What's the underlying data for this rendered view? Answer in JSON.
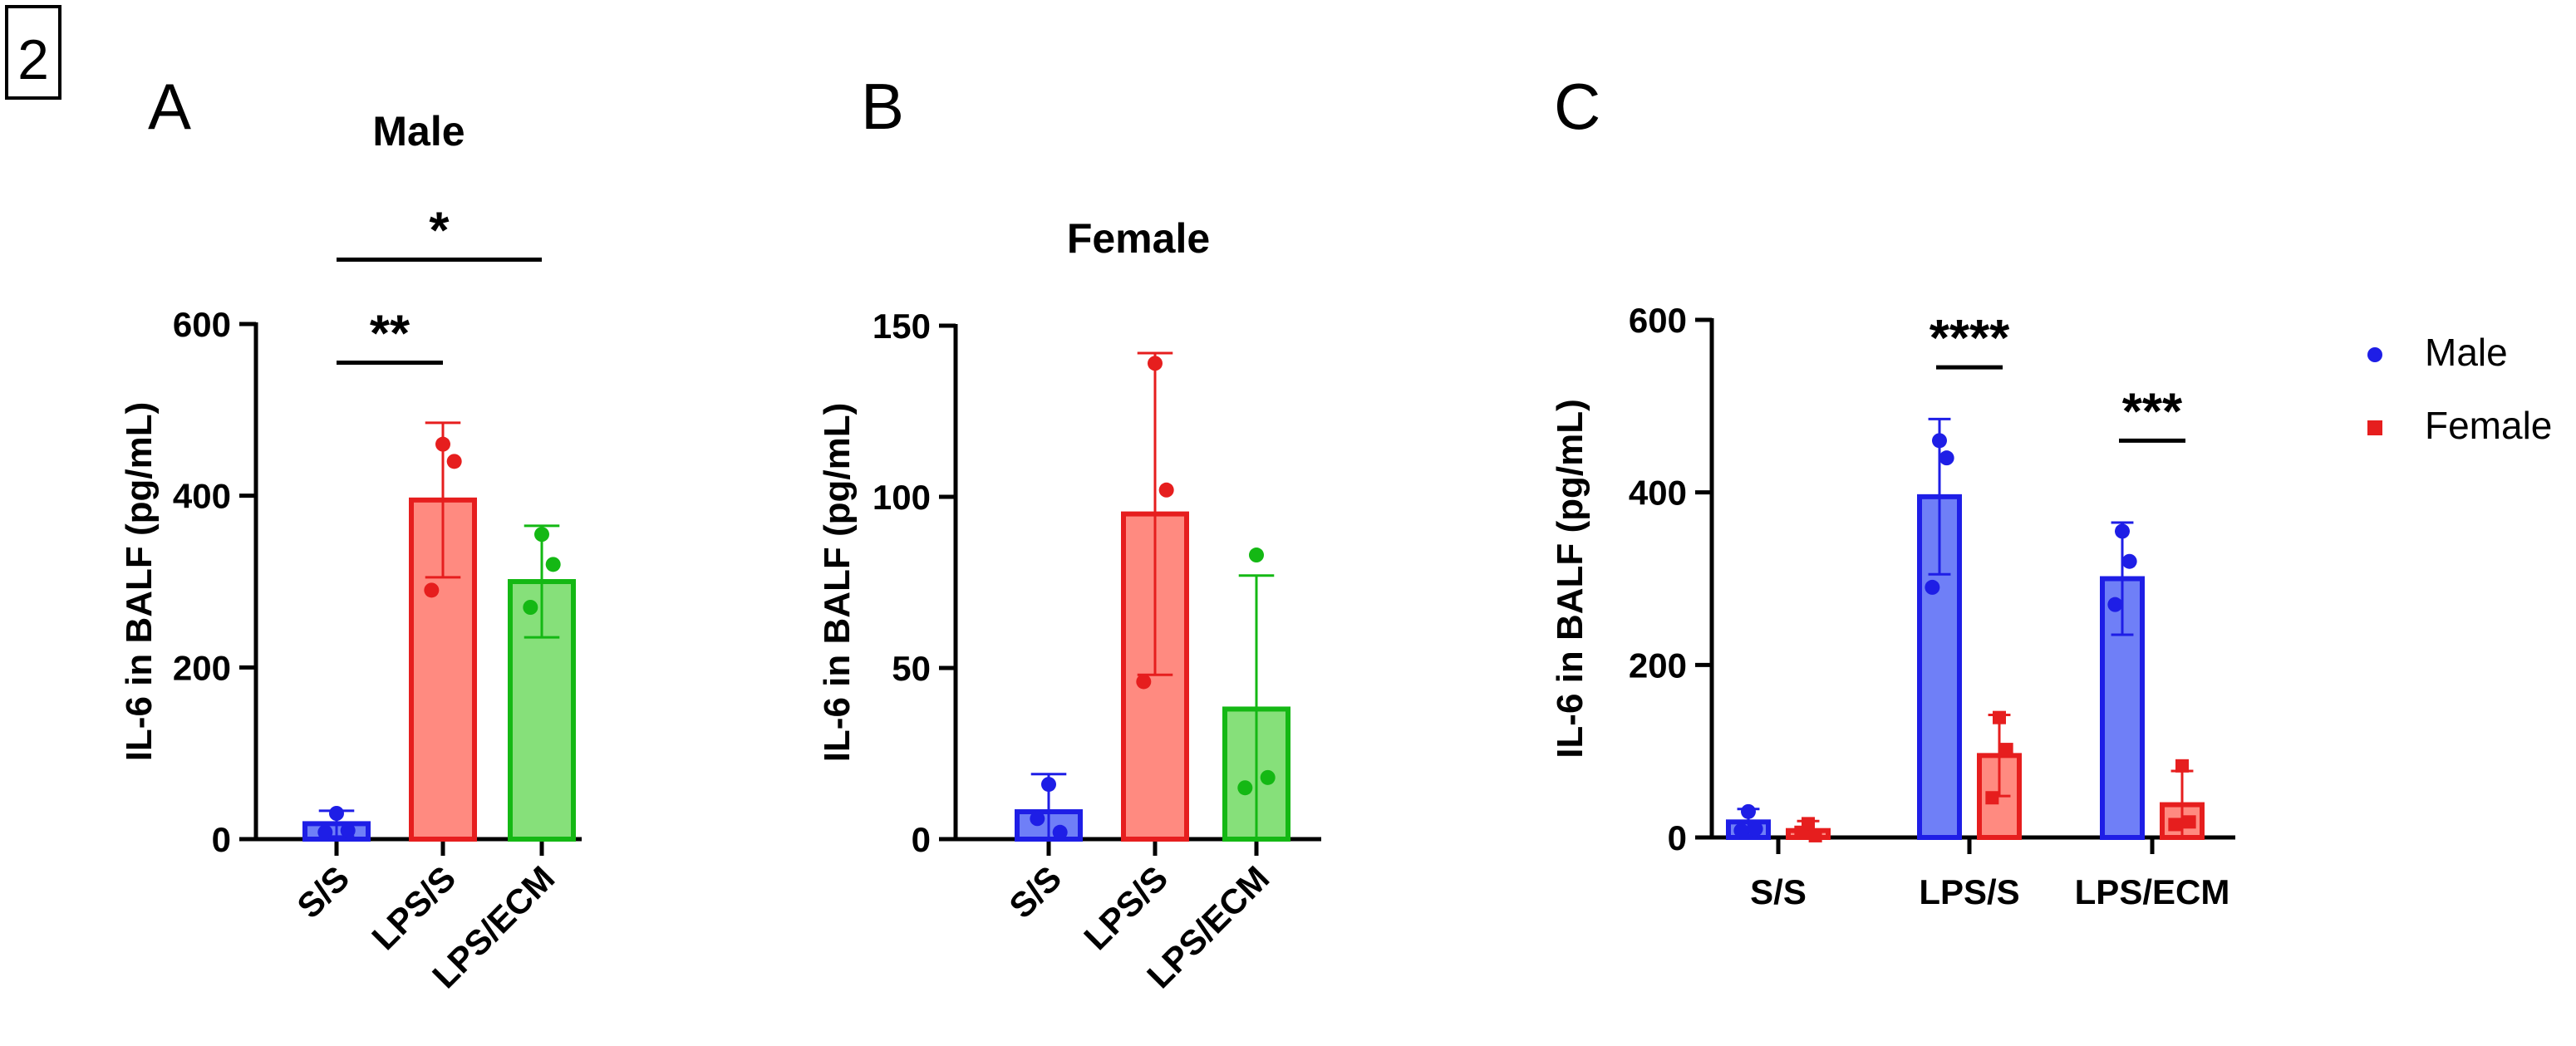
{
  "figure_number": "2",
  "legend": {
    "items": [
      {
        "label": "Male",
        "color": "#1e1ee6",
        "marker": "circle"
      },
      {
        "label": "Female",
        "color": "#e61e1e",
        "marker": "square"
      }
    ]
  },
  "chart_data": [
    {
      "panel": "A",
      "type": "bar",
      "title": "Male",
      "ylabel": "IL-6 in BALF (pg/mL)",
      "ylim": [
        0,
        600
      ],
      "yticks": [
        0,
        200,
        400,
        600
      ],
      "categories": [
        "S/S",
        "LPS/S",
        "LPS/ECM"
      ],
      "values": [
        18,
        395,
        300
      ],
      "errors": [
        15,
        90,
        65
      ],
      "points": [
        [
          30,
          10,
          8
        ],
        [
          460,
          440,
          290
        ],
        [
          355,
          320,
          270
        ]
      ],
      "fill_colors": [
        "#6f7ff7",
        "#ff8a80",
        "#86e07a"
      ],
      "edge_colors": [
        "#1e1ee6",
        "#e61e1e",
        "#14b814"
      ],
      "significance": [
        {
          "from": 0,
          "to": 1,
          "label": "**",
          "y": 555
        },
        {
          "from": 0,
          "to": 2,
          "label": "*",
          "y": 675
        }
      ]
    },
    {
      "panel": "B",
      "type": "bar",
      "title": "Female",
      "ylabel": "IL-6 in BALF (pg/mL)",
      "ylim": [
        0,
        150
      ],
      "yticks": [
        0,
        50,
        100,
        150
      ],
      "categories": [
        "S/S",
        "LPS/S",
        "LPS/ECM"
      ],
      "values": [
        8,
        95,
        38
      ],
      "errors": [
        11,
        47,
        39
      ],
      "points": [
        [
          16,
          2,
          6
        ],
        [
          139,
          102,
          46
        ],
        [
          83,
          18,
          15
        ]
      ],
      "fill_colors": [
        "#6f7ff7",
        "#ff8a80",
        "#86e07a"
      ],
      "edge_colors": [
        "#1e1ee6",
        "#e61e1e",
        "#14b814"
      ],
      "significance": []
    },
    {
      "panel": "C",
      "type": "bar",
      "title": "",
      "ylabel": "IL-6 in BALF (pg/mL)",
      "ylim": [
        0,
        600
      ],
      "yticks": [
        0,
        200,
        400,
        600
      ],
      "categories": [
        "S/S",
        "LPS/S",
        "LPS/ECM"
      ],
      "series": [
        {
          "name": "Male",
          "values": [
            18,
            395,
            300
          ],
          "errors": [
            15,
            90,
            65
          ],
          "points": [
            [
              30,
              10,
              8
            ],
            [
              460,
              440,
              290
            ],
            [
              355,
              320,
              270
            ]
          ],
          "fill_color": "#6f7ff7",
          "edge_color": "#1e1ee6"
        },
        {
          "name": "Female",
          "values": [
            8,
            95,
            38
          ],
          "errors": [
            11,
            47,
            39
          ],
          "points": [
            [
              16,
              2,
              6
            ],
            [
              139,
              102,
              46
            ],
            [
              83,
              18,
              15
            ]
          ],
          "fill_color": "#ff8a80",
          "edge_color": "#e61e1e"
        }
      ],
      "significance": [
        {
          "category": 1,
          "label": "****",
          "y": 545
        },
        {
          "category": 2,
          "label": "***",
          "y": 460
        }
      ]
    }
  ]
}
